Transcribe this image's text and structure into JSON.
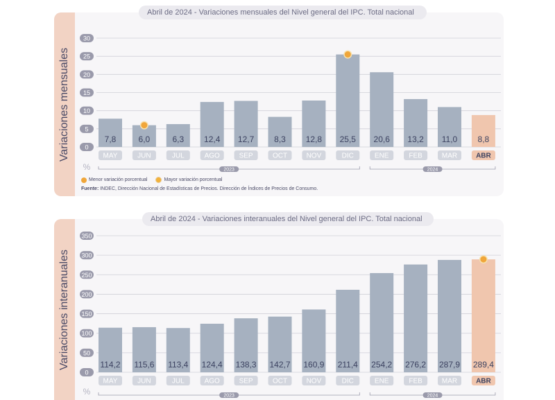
{
  "chart_1": {
    "title": "Abril de 2024 - Variaciones mensuales del Nivel general del IPC. Total nacional",
    "side_label": "Variaciones mensuales",
    "unit": "%",
    "legend": {
      "min_label": "Menor variación porcentual",
      "max_label": "Mayor variación porcentual"
    },
    "source_label": "Fuente:",
    "source_text": "INDEC, Dirección Nacional de Estadísticas de Precios. Dirección de Índices de Precios de Consumo."
  },
  "chart_2": {
    "title": "Abril de 2024 - Variaciones interanuales del Nivel general del IPC. Total nacional",
    "side_label": "Variaciones interanuales",
    "unit": "%"
  },
  "colors": {
    "bar": "#a6b1c0",
    "highlight_bar": "#f0c6ae",
    "marker": "#f0a63a",
    "axis_pill": "#9a9aab",
    "grid": "#d0d0d8"
  },
  "chart_data": [
    {
      "type": "bar",
      "categories": [
        "MAY",
        "JUN",
        "JUL",
        "AGO",
        "SEP",
        "OCT",
        "NOV",
        "DIC",
        "ENE",
        "FEB",
        "MAR",
        "ABR"
      ],
      "values": [
        7.8,
        6.0,
        6.3,
        12.4,
        12.7,
        8.3,
        12.8,
        25.5,
        20.6,
        13.2,
        11.0,
        8.8
      ],
      "labels": [
        "7,8",
        "6,0",
        "6,3",
        "12,4",
        "12,7",
        "8,3",
        "12,8",
        "25,5",
        "20,6",
        "13,2",
        "11,0",
        "8,8"
      ],
      "yticks": [
        0,
        5,
        10,
        15,
        20,
        25,
        30
      ],
      "ylim": [
        0,
        30
      ],
      "year_groups": [
        {
          "label": "2023",
          "from": 0,
          "to": 7
        },
        {
          "label": "2024",
          "from": 8,
          "to": 11
        }
      ],
      "highlight_index": 11,
      "min_marker_index": 1,
      "max_marker_index": 7,
      "grid": true
    },
    {
      "type": "bar",
      "categories": [
        "MAY",
        "JUN",
        "JUL",
        "AGO",
        "SEP",
        "OCT",
        "NOV",
        "DIC",
        "ENE",
        "FEB",
        "MAR",
        "ABR"
      ],
      "values": [
        114.2,
        115.6,
        113.4,
        124.4,
        138.3,
        142.7,
        160.9,
        211.4,
        254.2,
        276.2,
        287.9,
        289.4
      ],
      "labels": [
        "114,2",
        "115,6",
        "113,4",
        "124,4",
        "138,3",
        "142,7",
        "160,9",
        "211,4",
        "254,2",
        "276,2",
        "287,9",
        "289,4"
      ],
      "yticks": [
        0,
        50,
        100,
        150,
        200,
        250,
        300,
        350
      ],
      "ylim": [
        0,
        350
      ],
      "year_groups": [
        {
          "label": "2023",
          "from": 0,
          "to": 7
        },
        {
          "label": "2024",
          "from": 8,
          "to": 11
        }
      ],
      "highlight_index": 11,
      "max_marker_index": 11,
      "grid": true
    }
  ]
}
